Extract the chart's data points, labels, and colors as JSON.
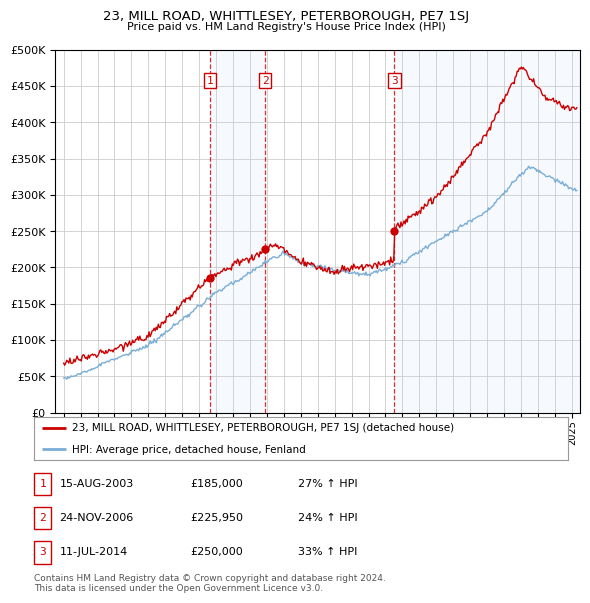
{
  "title": "23, MILL ROAD, WHITTLESEY, PETERBOROUGH, PE7 1SJ",
  "subtitle": "Price paid vs. HM Land Registry's House Price Index (HPI)",
  "red_label": "23, MILL ROAD, WHITTLESEY, PETERBOROUGH, PE7 1SJ (detached house)",
  "blue_label": "HPI: Average price, detached house, Fenland",
  "transactions": [
    {
      "num": 1,
      "date": "15-AUG-2003",
      "price": "£185,000",
      "change": "27% ↑ HPI",
      "year": 2003.62
    },
    {
      "num": 2,
      "date": "24-NOV-2006",
      "price": "£225,950",
      "change": "24% ↑ HPI",
      "year": 2006.9
    },
    {
      "num": 3,
      "date": "11-JUL-2014",
      "price": "£250,000",
      "change": "33% ↑ HPI",
      "year": 2014.53
    }
  ],
  "vline_years": [
    2003.62,
    2006.9,
    2014.53
  ],
  "footer": "Contains HM Land Registry data © Crown copyright and database right 2024.\nThis data is licensed under the Open Government Licence v3.0.",
  "ylim": [
    0,
    500000
  ],
  "xlim_start": 1994.5,
  "xlim_end": 2025.5,
  "background_color": "#ffffff",
  "grid_color": "#cccccc",
  "red_color": "#cc0000",
  "blue_color": "#7aaed6",
  "shade_color": "#ddeeff"
}
